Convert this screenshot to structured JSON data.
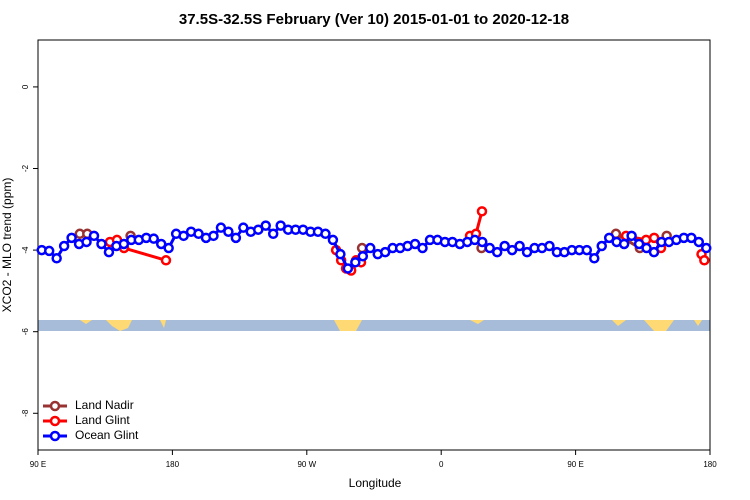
{
  "chart_data": {
    "type": "line",
    "title": "37.5S-32.5S February (Ver 10)   2015-01-01 to 2020-12-18",
    "xlabel": "Longitude",
    "ylabel": "XCO2 - MLO trend (ppm)",
    "xlim": [
      90,
      540
    ],
    "ylim": [
      -8.9,
      1.15
    ],
    "xticks": [
      {
        "value": 90,
        "label": "90 E"
      },
      180,
      {
        "value": 270,
        "label": "90 W"
      },
      {
        "value": 360,
        "label": "0"
      },
      {
        "value": 450,
        "label": "90 E"
      },
      {
        "value": 540,
        "label": "180"
      }
    ],
    "yticks": [
      0,
      -2,
      -4,
      -6,
      -8
    ],
    "legend": "bottom-left",
    "series": [
      {
        "name": "Land Nadir",
        "color": "#993333",
        "x": [
          118,
          123,
          137,
          152,
          230,
          307,
          350,
          387,
          430,
          477,
          493,
          502,
          511
        ],
        "values": [
          -3.6,
          -3.6,
          null,
          -3.65,
          null,
          -3.95,
          null,
          -3.95,
          null,
          -3.6,
          -3.95,
          null,
          -3.65
        ]
      },
      {
        "name": "Land Glint",
        "color": "#ff0000",
        "x": [
          138.2,
          142.9,
          147.6,
          175.7,
          230,
          289.6,
          293,
          296.3,
          299.7,
          303,
          306.3,
          340,
          379.3,
          383.3,
          387.3,
          430,
          483.8,
          497.2,
          502.6,
          507.2,
          520,
          534.3,
          536.2
        ],
        "values": [
          -3.8,
          -3.75,
          -3.95,
          -4.25,
          null,
          -4.0,
          -4.25,
          -4.45,
          -4.5,
          -4.25,
          -4.3,
          null,
          -3.65,
          -3.6,
          -3.05,
          null,
          -3.65,
          -3.75,
          -3.7,
          -3.95,
          null,
          -4.1,
          -4.25
        ]
      },
      {
        "name": "Ocean Glint",
        "color": "#0000ff",
        "x": [
          92.5,
          97.5,
          102.5,
          107.5,
          112.5,
          117.5,
          122.5,
          127.5,
          132.5,
          137.5,
          142.5,
          147.5,
          152.5,
          157.5,
          162.5,
          167.5,
          172.5,
          177.5,
          182.5,
          187.5,
          192.5,
          197.5,
          202.5,
          207.5,
          212.5,
          217.5,
          222.5,
          227.5,
          232.5,
          237.5,
          242.5,
          247.5,
          252.5,
          257.5,
          262.5,
          267.5,
          272.5,
          277.5,
          282.5,
          287.5,
          292.5,
          297.5,
          302.5,
          307.5,
          312.5,
          317.5,
          322.5,
          327.5,
          332.5,
          337.5,
          342.5,
          347.5,
          352.5,
          357.5,
          362.5,
          367.5,
          372.5,
          377.5,
          382.5,
          387.5,
          392.5,
          397.5,
          402.5,
          407.5,
          412.5,
          417.5,
          422.5,
          427.5,
          432.5,
          437.5,
          442.5,
          447.5,
          452.5,
          457.5,
          462.5,
          467.5,
          472.5,
          477.5,
          482.5,
          487.5,
          492.5,
          497.5,
          502.5,
          507.5,
          512.5,
          517.5,
          522.5,
          527.5,
          532.5,
          537.5
        ],
        "values": [
          -4.0,
          -4.02,
          -4.2,
          -3.9,
          -3.7,
          -3.85,
          -3.8,
          -3.65,
          -3.85,
          -4.05,
          -3.9,
          -3.85,
          -3.75,
          -3.75,
          -3.7,
          -3.72,
          -3.85,
          -3.95,
          -3.6,
          -3.65,
          -3.55,
          -3.6,
          -3.7,
          -3.65,
          -3.45,
          -3.55,
          -3.7,
          -3.45,
          -3.55,
          -3.5,
          -3.4,
          -3.6,
          -3.4,
          -3.5,
          -3.5,
          -3.5,
          -3.55,
          -3.55,
          -3.6,
          -3.75,
          -4.1,
          -4.45,
          -4.3,
          -4.15,
          -3.95,
          -4.1,
          -4.05,
          -3.95,
          -3.95,
          -3.9,
          -3.85,
          -3.95,
          -3.75,
          -3.75,
          -3.8,
          -3.8,
          -3.85,
          -3.8,
          -3.75,
          -3.8,
          -3.95,
          -4.05,
          -3.9,
          -4.0,
          -3.9,
          -4.05,
          -3.95,
          -3.95,
          -3.9,
          -4.05,
          -4.05,
          -4.0,
          -4.0,
          -4.0,
          -4.2,
          -3.9,
          -3.7,
          -3.8,
          -3.85,
          -3.65,
          -3.85,
          -3.95,
          -4.05,
          -3.8,
          -3.8,
          -3.75,
          -3.7,
          -3.7,
          -3.8,
          -3.95
        ]
      }
    ]
  }
}
